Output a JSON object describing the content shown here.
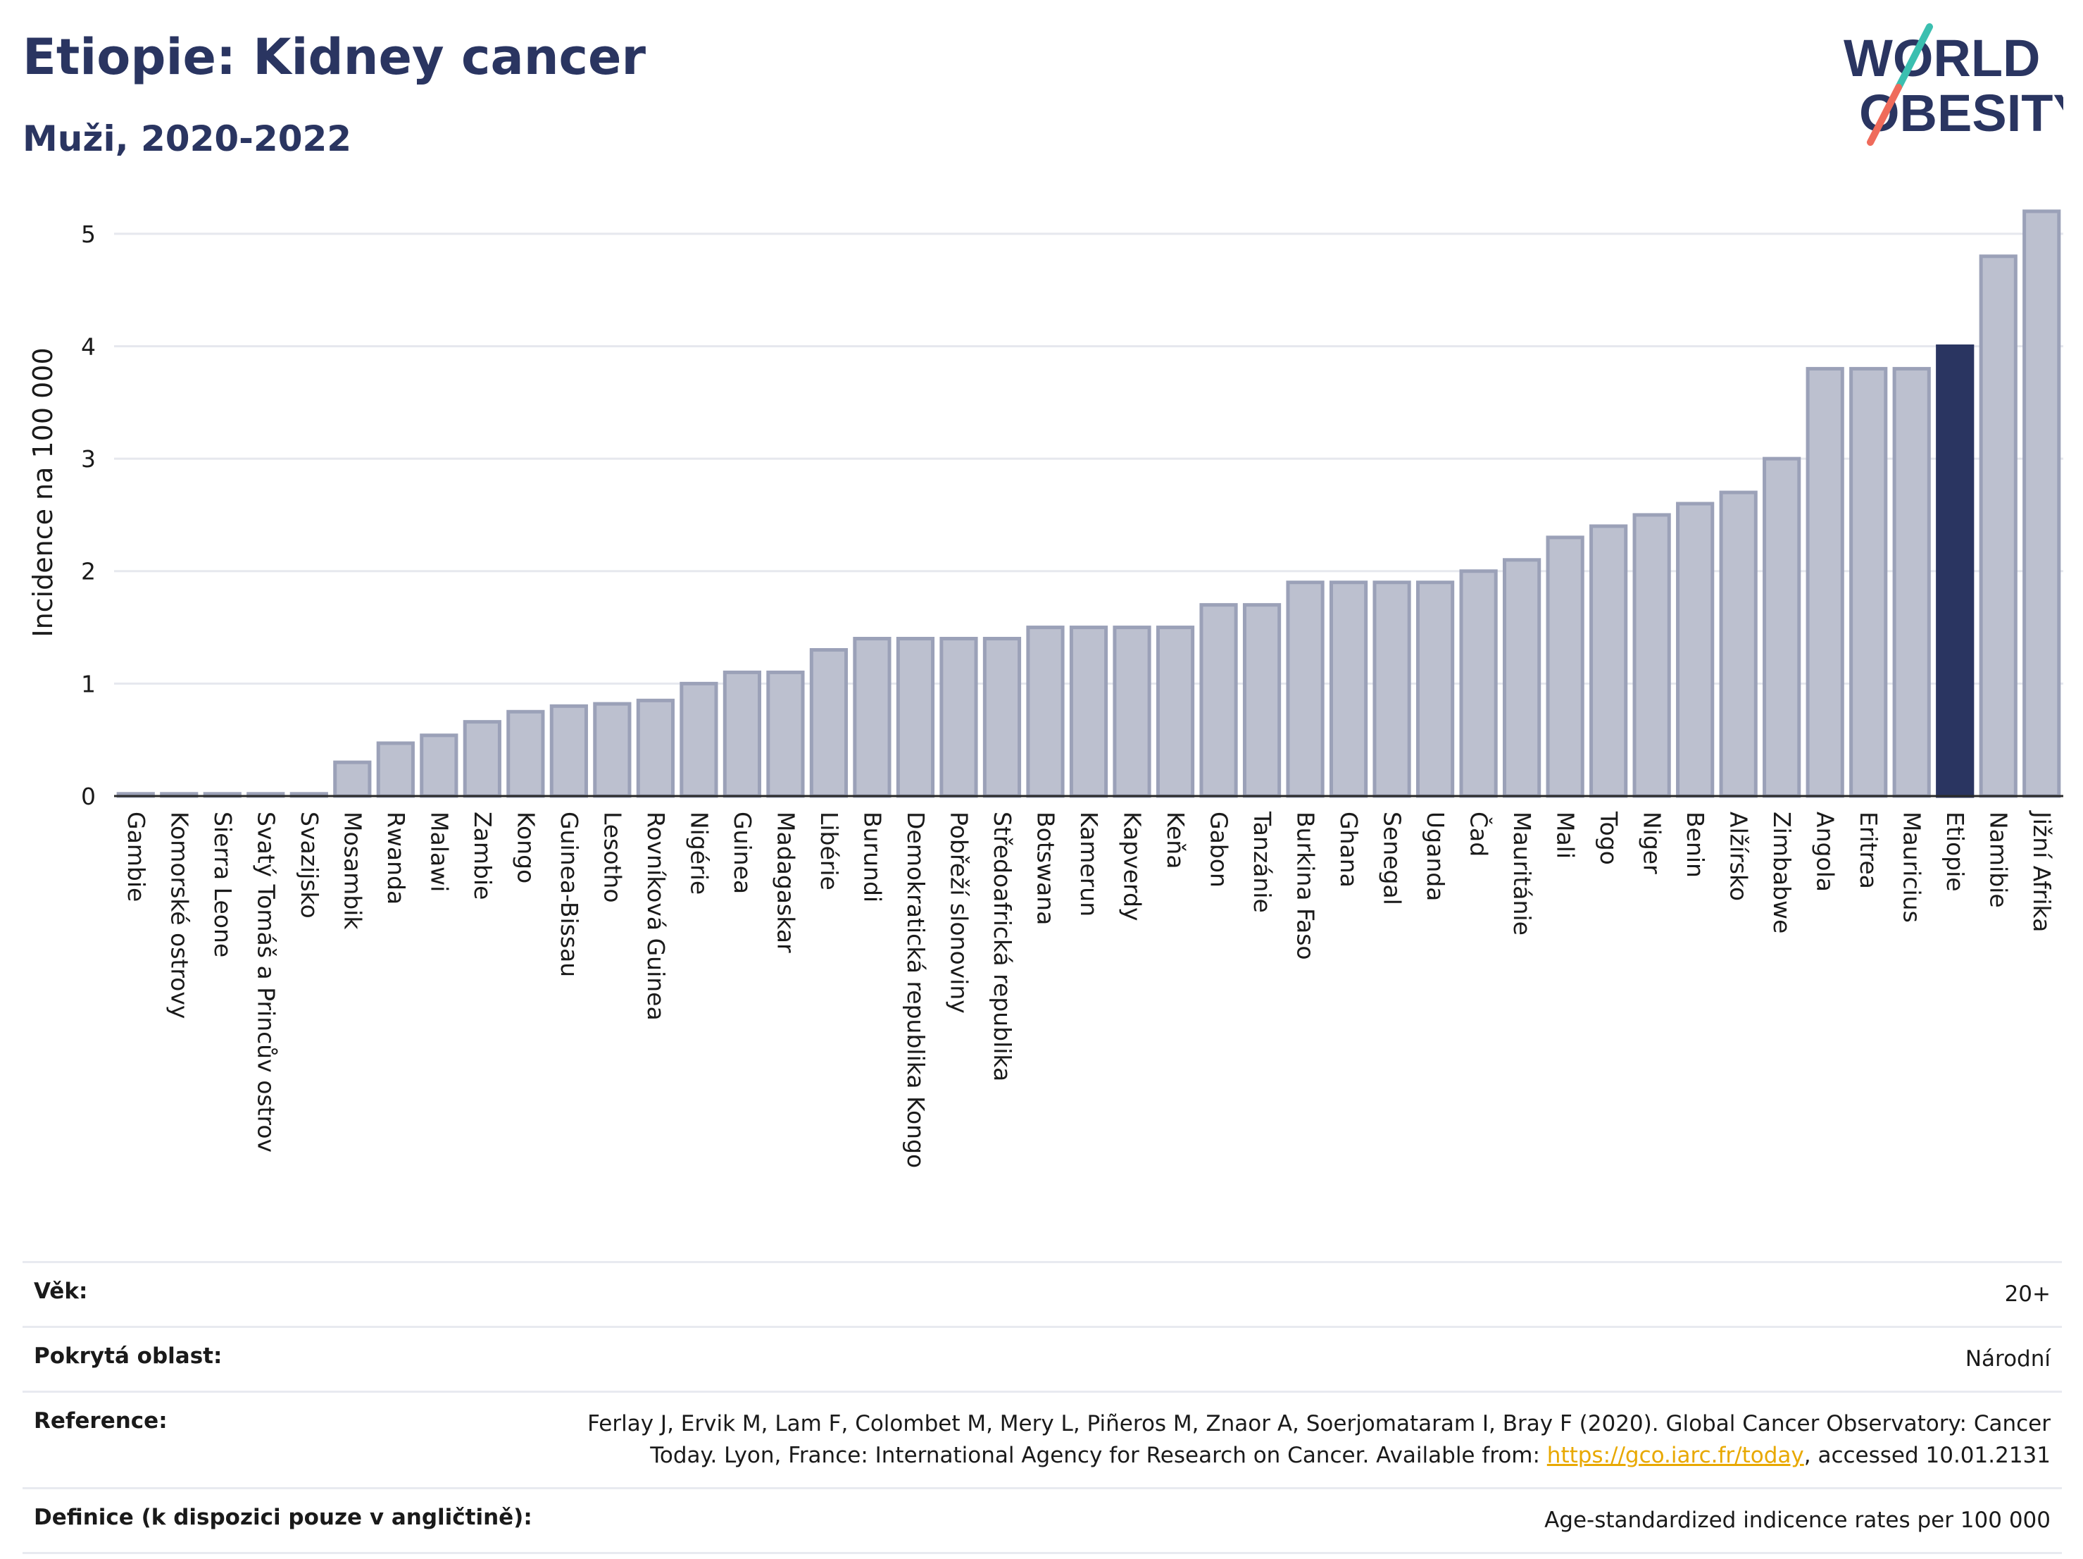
{
  "header": {
    "title": "Etiopie: Kidney cancer",
    "subtitle": "Muži, 2020-2022"
  },
  "logo": {
    "line1": "WORLD",
    "line2": "OBESITY",
    "slash_colors": [
      "#3bbfb0",
      "#ef6b5b"
    ]
  },
  "colors": {
    "bar": "#bcc0cf",
    "bar_edge": "#9ba1b8",
    "highlight": "#2a3561",
    "grid": "#e6e8ee"
  },
  "chart_data": {
    "type": "bar",
    "ylabel": "Incidence na 100 000",
    "ylim": [
      0,
      5.4
    ],
    "yticks": [
      0,
      1,
      2,
      3,
      4,
      5
    ],
    "highlight": "Etiopie",
    "categories": [
      "Gambie",
      "Komorské ostrovy",
      "Sierra Leone",
      "Svatý Tomáš a Princův ostrov",
      "Svazijsko",
      "Mosambik",
      "Rwanda",
      "Malawi",
      "Zambie",
      "Kongo",
      "Guinea-Bissau",
      "Lesotho",
      "Rovníková Guinea",
      "Nigérie",
      "Guinea",
      "Madagaskar",
      "Libérie",
      "Burundi",
      "Demokratická republika Kongo",
      "Pobřeží slonoviny",
      "Středoafrická republika",
      "Botswana",
      "Kamerun",
      "Kapverdy",
      "Keňa",
      "Gabon",
      "Tanzánie",
      "Burkina Faso",
      "Ghana",
      "Senegal",
      "Uganda",
      "Čad",
      "Mauritánie",
      "Mali",
      "Togo",
      "Niger",
      "Benin",
      "Alžírsko",
      "Zimbabwe",
      "Angola",
      "Eritrea",
      "Mauricius",
      "Etiopie",
      "Namibie",
      "Jižní Afrika"
    ],
    "values": [
      0.02,
      0.02,
      0.02,
      0.02,
      0.02,
      0.3,
      0.47,
      0.54,
      0.66,
      0.75,
      0.8,
      0.82,
      0.85,
      1.0,
      1.1,
      1.1,
      1.3,
      1.4,
      1.4,
      1.4,
      1.4,
      1.5,
      1.5,
      1.5,
      1.5,
      1.7,
      1.7,
      1.9,
      1.9,
      1.9,
      1.9,
      2.0,
      2.1,
      2.3,
      2.4,
      2.5,
      2.6,
      2.7,
      3.0,
      3.8,
      3.8,
      3.8,
      4.0,
      4.8,
      5.2
    ]
  },
  "info": {
    "rows": [
      {
        "key": "Věk:",
        "value": "20+"
      },
      {
        "key": "Pokrytá oblast:",
        "value": "Národní"
      },
      {
        "key": "Reference:",
        "value": "Ferlay J, Ervik M, Lam F, Colombet M, Mery L, Piñeros M, Znaor A, Soerjomataram I, Bray F (2020). Global Cancer Observatory: Cancer Today. Lyon, France: International Agency for Research on Cancer. Available from:",
        "link": "https://gco.iarc.fr/today",
        "suffix": ", accessed 10.01.2131"
      },
      {
        "key": "Definice (k dispozici pouze v angličtině):",
        "value": "Age-standardized indicence rates per 100 000"
      }
    ]
  }
}
